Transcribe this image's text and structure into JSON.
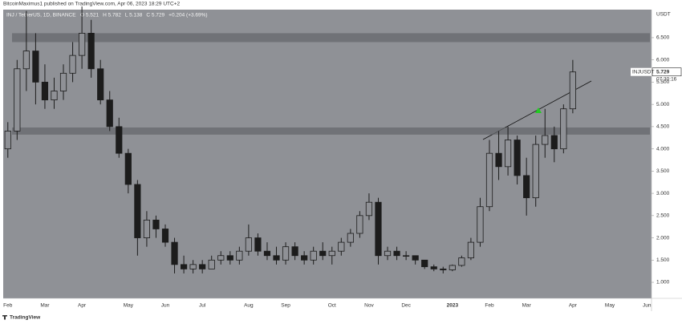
{
  "chart_data": {
    "type": "candlestick",
    "subtitle": "BitcoinMaximus1 published on TradingView.com, Apr 06, 2023 18:29 UTC+2",
    "title": "INJ / TetherUS, 1D, BINANCE",
    "info": [
      "O 5.521",
      "H 5.782",
      "L 5.138",
      "C 5.729",
      "+0.204 (+3.69%)"
    ],
    "y_unit": "USDT",
    "symbol": "INJUSDT",
    "last_price": 5.729,
    "countdown": "07:30:16",
    "footer": "TradingView",
    "color": "#1c1c1c",
    "background": "#8f9196",
    "zone_color": "#66686c",
    "grid": false,
    "categories": [
      "Feb",
      null,
      null,
      null,
      "Mar",
      null,
      null,
      null,
      "Apr",
      null,
      null,
      null,
      null,
      "May",
      null,
      null,
      null,
      "Jun",
      null,
      null,
      null,
      "Jul",
      null,
      null,
      null,
      null,
      "Aug",
      null,
      null,
      null,
      "Sep",
      null,
      null,
      null,
      null,
      "Oct",
      null,
      null,
      null,
      "Nov",
      null,
      null,
      null,
      "Dec",
      null,
      null,
      null,
      null,
      "2023",
      null,
      null,
      null,
      "Feb",
      null,
      null,
      null,
      "Mar",
      null,
      null,
      null,
      null,
      "Apr",
      null,
      null,
      null,
      "May",
      null,
      null,
      null,
      "Jun"
    ],
    "open": [
      4.0,
      4.4,
      5.8,
      6.2,
      5.5,
      5.1,
      5.3,
      5.7,
      6.1,
      6.6,
      5.8,
      5.1,
      4.5,
      3.9,
      3.2,
      2.0,
      2.4,
      2.2,
      1.9,
      1.4,
      1.3,
      1.4,
      1.3,
      1.5,
      1.6,
      1.5,
      1.7,
      2.0,
      1.7,
      1.6,
      1.5,
      1.8,
      1.6,
      1.5,
      1.7,
      1.6,
      1.7,
      1.9,
      2.1,
      2.5,
      2.8,
      1.6,
      1.7,
      1.6,
      1.6,
      1.5,
      1.35,
      1.3,
      1.28,
      1.38,
      1.55,
      1.9,
      2.7,
      3.9,
      3.6,
      4.2,
      3.4,
      2.9,
      4.1,
      4.3,
      4.0,
      4.9,
      null,
      null,
      null,
      null,
      null,
      null,
      null,
      null
    ],
    "high": [
      4.6,
      6.0,
      7.1,
      6.6,
      5.9,
      5.6,
      5.9,
      6.4,
      7.2,
      6.9,
      6.0,
      5.3,
      4.7,
      4.0,
      3.3,
      2.6,
      2.5,
      2.3,
      2.0,
      1.6,
      1.5,
      1.5,
      1.6,
      1.7,
      1.7,
      1.8,
      2.3,
      2.1,
      1.9,
      1.8,
      1.9,
      1.9,
      1.7,
      1.8,
      1.9,
      1.8,
      2.0,
      2.2,
      2.6,
      3.0,
      2.9,
      1.8,
      1.8,
      1.7,
      1.6,
      1.5,
      1.4,
      1.35,
      1.4,
      1.6,
      2.0,
      2.9,
      4.2,
      4.4,
      4.5,
      4.3,
      3.8,
      4.3,
      4.9,
      4.5,
      5.0,
      6.0,
      null,
      null,
      null,
      null,
      null,
      null,
      null,
      null
    ],
    "low": [
      3.8,
      4.2,
      5.3,
      5.0,
      4.9,
      4.9,
      5.1,
      5.5,
      5.8,
      5.6,
      5.0,
      4.4,
      3.8,
      3.0,
      1.6,
      1.8,
      2.0,
      1.8,
      1.2,
      1.2,
      1.2,
      1.2,
      1.3,
      1.4,
      1.4,
      1.4,
      1.6,
      1.6,
      1.5,
      1.4,
      1.4,
      1.5,
      1.4,
      1.4,
      1.5,
      1.4,
      1.6,
      1.8,
      2.0,
      2.4,
      1.4,
      1.5,
      1.5,
      1.5,
      1.4,
      1.3,
      1.25,
      1.2,
      1.25,
      1.35,
      1.5,
      1.8,
      2.6,
      3.3,
      3.4,
      3.2,
      2.5,
      2.7,
      3.8,
      3.7,
      3.9,
      4.8,
      null,
      null,
      null,
      null,
      null,
      null,
      null,
      null
    ],
    "close": [
      4.4,
      5.8,
      6.2,
      5.5,
      5.1,
      5.3,
      5.7,
      6.1,
      6.6,
      5.8,
      5.1,
      4.5,
      3.9,
      3.2,
      2.0,
      2.4,
      2.2,
      1.9,
      1.4,
      1.3,
      1.4,
      1.3,
      1.5,
      1.6,
      1.5,
      1.7,
      2.0,
      1.7,
      1.6,
      1.5,
      1.8,
      1.6,
      1.5,
      1.7,
      1.6,
      1.7,
      1.9,
      2.1,
      2.5,
      2.8,
      1.6,
      1.7,
      1.6,
      1.6,
      1.5,
      1.35,
      1.3,
      1.28,
      1.38,
      1.55,
      1.9,
      2.7,
      3.9,
      3.6,
      4.2,
      3.4,
      2.9,
      4.1,
      4.3,
      4.0,
      4.9,
      5.729,
      null,
      null,
      null,
      null,
      null,
      null,
      null,
      null
    ],
    "zones": [
      [
        6.4,
        6.6
      ],
      [
        4.32,
        4.48
      ]
    ],
    "ylim": [
      0.64,
      7.13
    ],
    "yticks": [
      {
        "value": 1,
        "label": "1.000"
      },
      {
        "value": 1.5,
        "label": "1.500"
      },
      {
        "value": 2,
        "label": "2.000"
      },
      {
        "value": 2.5,
        "label": "2.500"
      },
      {
        "value": 3,
        "label": "3.000"
      },
      {
        "value": 3.5,
        "label": "3.500"
      },
      {
        "value": 4,
        "label": "4.000"
      },
      {
        "value": 4.5,
        "label": "4.500"
      },
      {
        "value": 5,
        "label": "5.000"
      },
      {
        "value": 5.5,
        "label": "5.500"
      },
      {
        "value": 6,
        "label": "6.000"
      },
      {
        "value": 6.5,
        "label": "6.500"
      }
    ]
  }
}
